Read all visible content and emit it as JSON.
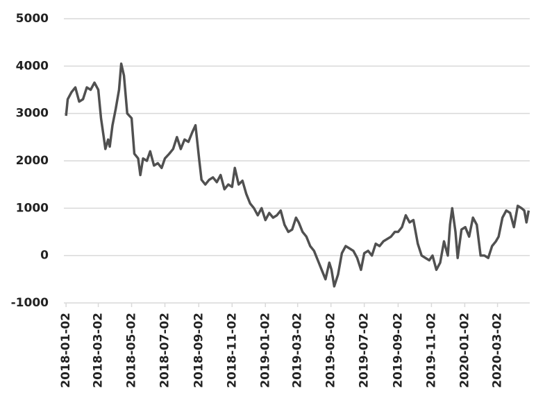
{
  "chart_data": {
    "type": "line",
    "color": "#505050",
    "grid": true,
    "xlim": [
      "2017-12-29",
      "2020-04-30"
    ],
    "ylim": [
      -1000,
      5000
    ],
    "yticks": [
      -1000,
      0,
      1000,
      2000,
      3000,
      4000,
      5000
    ],
    "xticks": [
      "2018-01-02",
      "2018-03-02",
      "2018-05-02",
      "2018-07-02",
      "2018-09-02",
      "2018-11-02",
      "2019-01-02",
      "2019-03-02",
      "2019-05-02",
      "2019-07-02",
      "2019-09-02",
      "2019-11-02",
      "2020-01-02",
      "2020-03-02"
    ],
    "x": [
      "2018-01-02",
      "2018-01-05",
      "2018-01-12",
      "2018-01-19",
      "2018-01-26",
      "2018-02-02",
      "2018-02-09",
      "2018-02-16",
      "2018-02-23",
      "2018-03-02",
      "2018-03-07",
      "2018-03-12",
      "2018-03-15",
      "2018-03-20",
      "2018-03-23",
      "2018-03-28",
      "2018-04-03",
      "2018-04-09",
      "2018-04-13",
      "2018-04-18",
      "2018-04-24",
      "2018-05-02",
      "2018-05-07",
      "2018-05-14",
      "2018-05-18",
      "2018-05-23",
      "2018-05-30",
      "2018-06-05",
      "2018-06-12",
      "2018-06-19",
      "2018-06-26",
      "2018-07-02",
      "2018-07-10",
      "2018-07-17",
      "2018-07-24",
      "2018-07-31",
      "2018-08-07",
      "2018-08-14",
      "2018-08-21",
      "2018-08-27",
      "2018-09-03",
      "2018-09-07",
      "2018-09-14",
      "2018-09-21",
      "2018-09-28",
      "2018-10-05",
      "2018-10-12",
      "2018-10-19",
      "2018-10-26",
      "2018-11-02",
      "2018-11-07",
      "2018-11-14",
      "2018-11-21",
      "2018-11-28",
      "2018-12-05",
      "2018-12-12",
      "2018-12-19",
      "2018-12-26",
      "2019-01-02",
      "2019-01-09",
      "2019-01-16",
      "2019-01-23",
      "2019-01-30",
      "2019-02-06",
      "2019-02-13",
      "2019-02-20",
      "2019-02-27",
      "2019-03-04",
      "2019-03-11",
      "2019-03-18",
      "2019-03-25",
      "2019-04-01",
      "2019-04-08",
      "2019-04-15",
      "2019-04-22",
      "2019-04-29",
      "2019-05-03",
      "2019-05-08",
      "2019-05-15",
      "2019-05-22",
      "2019-05-29",
      "2019-06-05",
      "2019-06-12",
      "2019-06-19",
      "2019-06-26",
      "2019-07-02",
      "2019-07-09",
      "2019-07-16",
      "2019-07-23",
      "2019-07-30",
      "2019-08-06",
      "2019-08-13",
      "2019-08-20",
      "2019-08-27",
      "2019-09-02",
      "2019-09-09",
      "2019-09-16",
      "2019-09-23",
      "2019-09-30",
      "2019-10-08",
      "2019-10-15",
      "2019-10-22",
      "2019-10-29",
      "2019-11-04",
      "2019-11-11",
      "2019-11-18",
      "2019-11-25",
      "2019-12-02",
      "2019-12-06",
      "2019-12-10",
      "2019-12-16",
      "2019-12-20",
      "2019-12-27",
      "2020-01-03",
      "2020-01-10",
      "2020-01-17",
      "2020-01-24",
      "2020-01-31",
      "2020-02-07",
      "2020-02-14",
      "2020-02-21",
      "2020-02-28",
      "2020-03-04",
      "2020-03-11",
      "2020-03-18",
      "2020-03-25",
      "2020-04-01",
      "2020-04-08",
      "2020-04-15",
      "2020-04-20",
      "2020-04-24",
      "2020-04-28"
    ],
    "values": [
      2950,
      3300,
      3450,
      3550,
      3250,
      3300,
      3550,
      3500,
      3650,
      3500,
      2900,
      2500,
      2250,
      2450,
      2300,
      2750,
      3100,
      3500,
      4050,
      3800,
      3000,
      2900,
      2150,
      2050,
      1700,
      2050,
      2000,
      2200,
      1900,
      1950,
      1850,
      2050,
      2150,
      2250,
      2500,
      2250,
      2450,
      2400,
      2600,
      2750,
      2000,
      1600,
      1500,
      1600,
      1650,
      1550,
      1700,
      1400,
      1500,
      1450,
      1850,
      1500,
      1580,
      1300,
      1100,
      1000,
      850,
      1000,
      750,
      900,
      800,
      850,
      950,
      650,
      500,
      550,
      800,
      700,
      500,
      400,
      200,
      100,
      -100,
      -300,
      -500,
      -150,
      -300,
      -650,
      -400,
      50,
      200,
      150,
      100,
      -50,
      -300,
      50,
      100,
      0,
      250,
      200,
      300,
      350,
      400,
      500,
      500,
      600,
      850,
      700,
      750,
      250,
      0,
      -50,
      -100,
      0,
      -300,
      -150,
      300,
      0,
      650,
      1000,
      500,
      -50,
      550,
      600,
      400,
      800,
      650,
      0,
      0,
      -50,
      200,
      300,
      400,
      800,
      950,
      900,
      600,
      1050,
      1000,
      950,
      700,
      950
    ]
  }
}
